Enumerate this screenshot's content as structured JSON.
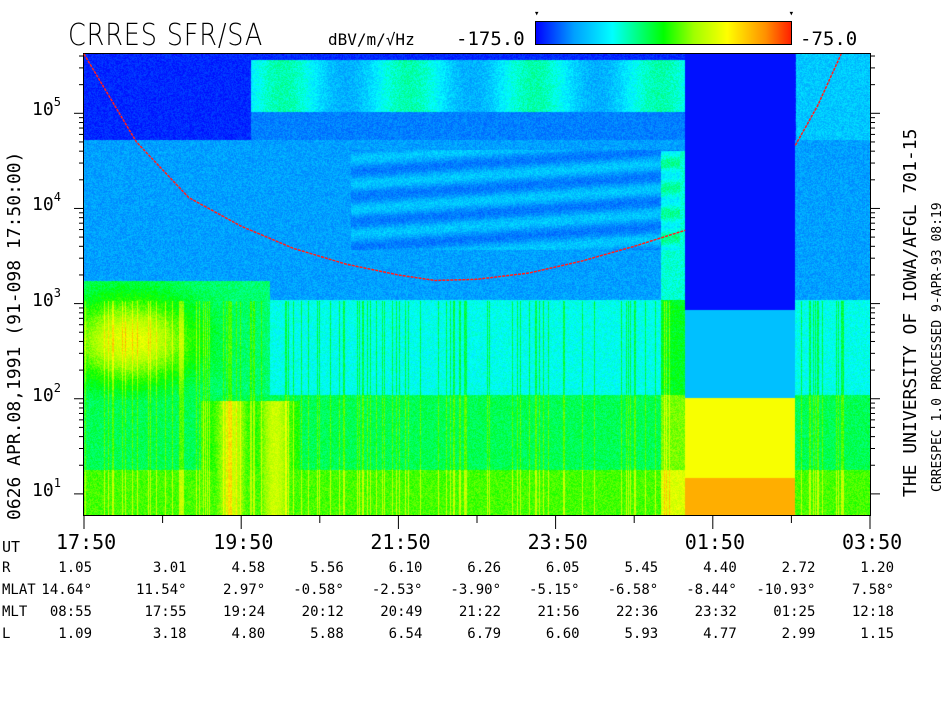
{
  "chart_data": {
    "type": "heatmap",
    "title": "CRRES SFR/SA",
    "colorbar": {
      "units": "dBV/m/√Hz",
      "min_label": "-175.0",
      "max_label": "-75.0",
      "min": -175.0,
      "max": -75.0,
      "colors": [
        "#0000ff",
        "#00ffff",
        "#00ff00",
        "#ffff00",
        "#ff9000",
        "#ff2000"
      ]
    },
    "ylabel": "0626  APR.08,1991  (91-098 17:50:00)",
    "y_scale": "log",
    "y_unit": "Hz",
    "ylim": [
      6,
      420000
    ],
    "y_ticks": [
      {
        "base": "10",
        "exp": "1",
        "value": 10
      },
      {
        "base": "10",
        "exp": "2",
        "value": 100
      },
      {
        "base": "10",
        "exp": "3",
        "value": 1000
      },
      {
        "base": "10",
        "exp": "4",
        "value": 10000
      },
      {
        "base": "10",
        "exp": "5",
        "value": 100000
      }
    ],
    "x_label": "UT",
    "x_ticks": [
      "17:50",
      "19:50",
      "21:50",
      "23:50",
      "01:50",
      "03:50"
    ],
    "xlim_hours": [
      0,
      10
    ],
    "red_curve": {
      "segment1": [
        [
          "17:50",
          420000
        ],
        [
          "18:30",
          50000
        ],
        [
          "19:10",
          13000
        ],
        [
          "19:50",
          6500
        ],
        [
          "20:30",
          3800
        ],
        [
          "21:10",
          2600
        ],
        [
          "21:50",
          2000
        ],
        [
          "22:18",
          1750
        ],
        [
          "22:50",
          1800
        ],
        [
          "23:30",
          2100
        ],
        [
          "00:10",
          2800
        ],
        [
          "00:50",
          4000
        ],
        [
          "01:29",
          5900
        ]
      ],
      "segment2": [
        [
          "02:53",
          46000
        ],
        [
          "03:10",
          120000
        ],
        [
          "03:28",
          420000
        ]
      ]
    },
    "ephemeris": {
      "rows": [
        {
          "label": "R",
          "values": [
            "1.05",
            "3.01",
            "4.58",
            "5.56",
            "6.10",
            "6.26",
            "6.05",
            "5.45",
            "4.40",
            "2.72",
            "1.20"
          ]
        },
        {
          "label": "MLAT",
          "values": [
            "14.64°",
            "11.54°",
            "2.97°",
            "-0.58°",
            "-2.53°",
            "-3.90°",
            "-5.15°",
            "-6.58°",
            "-8.44°",
            "-10.93°",
            "7.58°"
          ]
        },
        {
          "label": "MLT",
          "values": [
            "08:55",
            "17:55",
            "19:24",
            "20:12",
            "20:49",
            "21:22",
            "21:56",
            "22:36",
            "23:32",
            "01:25",
            "12:18"
          ]
        },
        {
          "label": "L",
          "values": [
            "1.09",
            "3.18",
            "4.80",
            "5.88",
            "6.54",
            "6.79",
            "6.60",
            "5.93",
            "4.77",
            "2.99",
            "1.15"
          ]
        }
      ]
    }
  },
  "right_text": "THE UNIVERSITY OF IOWA/AFGL 701-15",
  "right_text2": "CRRESPEC 1.0   PROCESSED  9-APR-93  08:19"
}
